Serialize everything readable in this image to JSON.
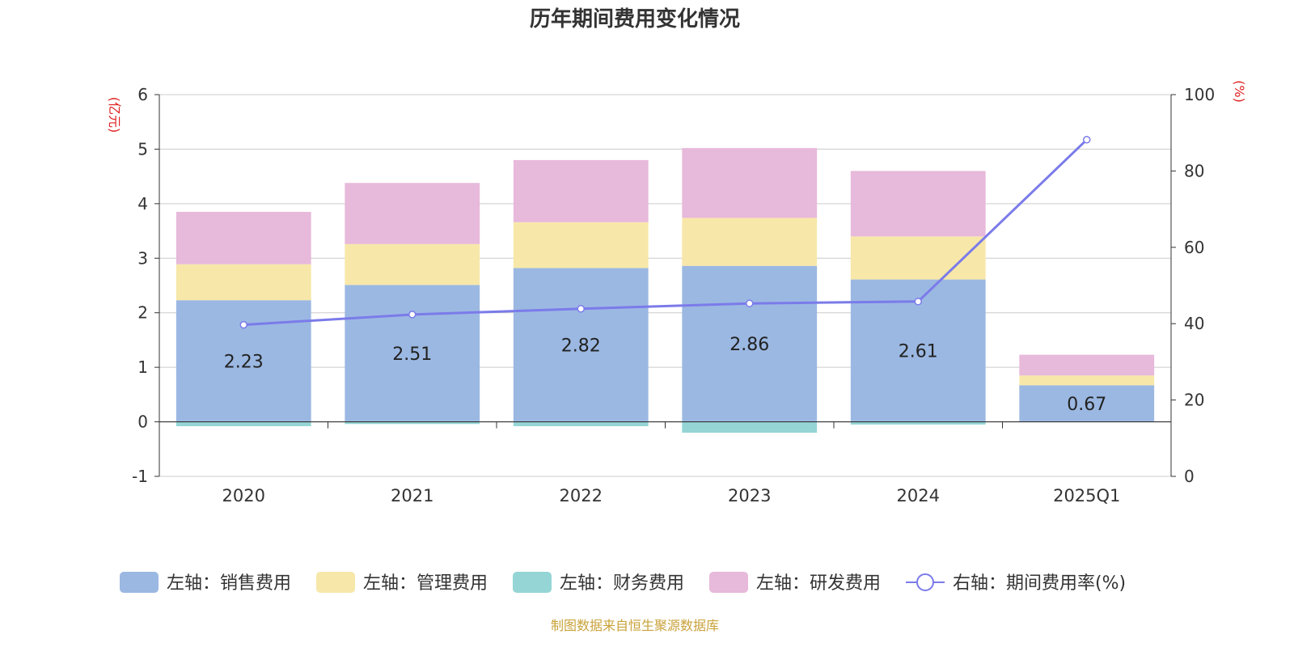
{
  "chart_data": {
    "type": "bar",
    "title": "历年期间费用变化情况",
    "categories": [
      "2020",
      "2021",
      "2022",
      "2023",
      "2024",
      "2025Q1"
    ],
    "y_left": {
      "unit": "(亿元)",
      "ylim": [
        -1,
        6
      ],
      "ticks": [
        "-1",
        "0",
        "1",
        "2",
        "3",
        "4",
        "5",
        "6"
      ]
    },
    "y_right": {
      "unit": "(%)",
      "ylim": [
        0,
        100
      ],
      "ticks": [
        "0",
        "20",
        "40",
        "60",
        "80",
        "100"
      ]
    },
    "series": [
      {
        "name": "左轴：销售费用",
        "axis": "left",
        "kind": "bar",
        "color": "#9bb8e2",
        "values": [
          2.23,
          2.51,
          2.82,
          2.86,
          2.61,
          0.67
        ],
        "labels": [
          "2.23",
          "2.51",
          "2.82",
          "2.86",
          "2.61",
          "0.67"
        ]
      },
      {
        "name": "左轴：管理费用",
        "axis": "left",
        "kind": "bar",
        "color": "#f7e7a9",
        "values": [
          0.66,
          0.75,
          0.84,
          0.88,
          0.79,
          0.18
        ]
      },
      {
        "name": "左轴：财务费用",
        "axis": "left",
        "kind": "bar",
        "color": "#95d5d5",
        "values": [
          -0.08,
          -0.04,
          -0.08,
          -0.2,
          -0.05,
          0.0
        ]
      },
      {
        "name": "左轴：研发费用",
        "axis": "left",
        "kind": "bar",
        "color": "#e7b9da",
        "values": [
          0.96,
          1.12,
          1.14,
          1.28,
          1.2,
          0.38
        ]
      },
      {
        "name": "右轴：期间费用率(%)",
        "axis": "right",
        "kind": "line",
        "color": "#7b7bea",
        "values": [
          39.7,
          42.4,
          43.9,
          45.3,
          45.8,
          88.2
        ]
      }
    ],
    "grid": true,
    "legend_position": "bottom"
  },
  "source_note": "制图数据来自恒生聚源数据库"
}
